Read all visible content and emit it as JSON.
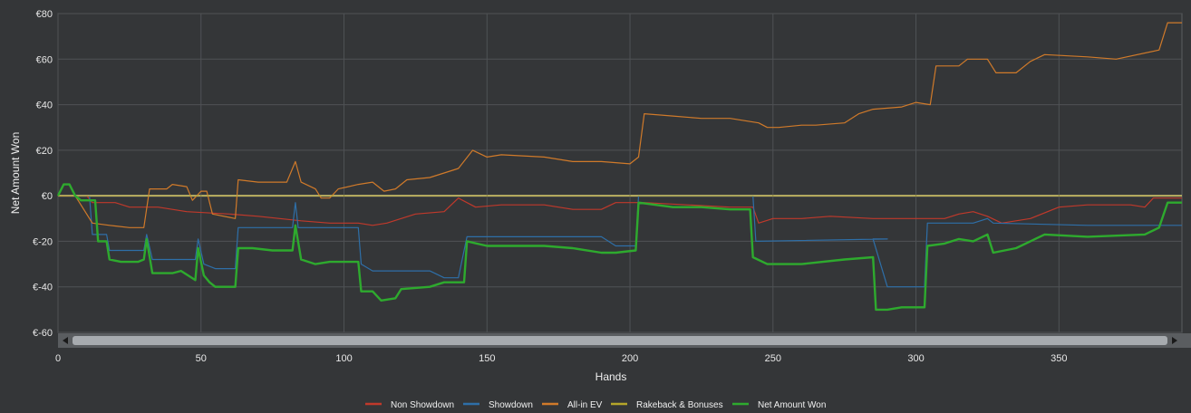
{
  "chart_data": {
    "type": "line",
    "xlabel": "Hands",
    "ylabel": "Net Amount Won",
    "xlim": [
      0,
      393
    ],
    "ylim": [
      -60,
      80
    ],
    "x_ticks": [
      0,
      50,
      100,
      150,
      200,
      250,
      300,
      350
    ],
    "y_ticks": [
      {
        "value": 80,
        "label": "€80"
      },
      {
        "value": 60,
        "label": "€60"
      },
      {
        "value": 40,
        "label": "€40"
      },
      {
        "value": 20,
        "label": "€20"
      },
      {
        "value": 0,
        "label": "€0"
      },
      {
        "value": -20,
        "label": "€-20"
      },
      {
        "value": -40,
        "label": "€-40"
      },
      {
        "value": -60,
        "label": "€-60"
      }
    ],
    "grid": true,
    "legend_position": "bottom-center",
    "series": [
      {
        "name": "Non Showdown",
        "color": "#c0392b",
        "width": 1.2,
        "points": [
          [
            0,
            0
          ],
          [
            3,
            0
          ],
          [
            10,
            0
          ],
          [
            12,
            -3
          ],
          [
            20,
            -3
          ],
          [
            25,
            -5
          ],
          [
            35,
            -5
          ],
          [
            45,
            -7
          ],
          [
            60,
            -8
          ],
          [
            70,
            -9
          ],
          [
            85,
            -11
          ],
          [
            95,
            -12
          ],
          [
            105,
            -12
          ],
          [
            110,
            -13
          ],
          [
            115,
            -12
          ],
          [
            125,
            -8
          ],
          [
            135,
            -7
          ],
          [
            140,
            -1
          ],
          [
            146,
            -5
          ],
          [
            155,
            -4
          ],
          [
            170,
            -4
          ],
          [
            180,
            -6
          ],
          [
            190,
            -6
          ],
          [
            195,
            -3
          ],
          [
            205,
            -3
          ],
          [
            220,
            -4
          ],
          [
            235,
            -5
          ],
          [
            243,
            -5
          ],
          [
            245,
            -12
          ],
          [
            250,
            -10
          ],
          [
            260,
            -10
          ],
          [
            270,
            -9
          ],
          [
            285,
            -10
          ],
          [
            300,
            -10
          ],
          [
            310,
            -10
          ],
          [
            315,
            -8
          ],
          [
            320,
            -7
          ],
          [
            325,
            -9
          ],
          [
            330,
            -12
          ],
          [
            340,
            -10
          ],
          [
            350,
            -5
          ],
          [
            360,
            -4
          ],
          [
            375,
            -4
          ],
          [
            380,
            -5
          ],
          [
            383,
            -1
          ],
          [
            390,
            -1
          ],
          [
            393,
            -1
          ]
        ]
      },
      {
        "name": "Showdown",
        "color": "#2e6fa8",
        "width": 1.2,
        "points": [
          [
            0,
            0
          ],
          [
            2,
            5
          ],
          [
            4,
            5
          ],
          [
            6,
            0
          ],
          [
            11,
            0
          ],
          [
            12,
            -17
          ],
          [
            17,
            -17
          ],
          [
            18,
            -24
          ],
          [
            30,
            -24
          ],
          [
            31,
            -17
          ],
          [
            33,
            -28
          ],
          [
            48,
            -28
          ],
          [
            49,
            -19
          ],
          [
            51,
            -30
          ],
          [
            55,
            -32
          ],
          [
            62,
            -32
          ],
          [
            63,
            -14
          ],
          [
            82,
            -14
          ],
          [
            83,
            -3
          ],
          [
            84,
            -14
          ],
          [
            100,
            -14
          ],
          [
            105,
            -14
          ],
          [
            106,
            -30
          ],
          [
            110,
            -33
          ],
          [
            130,
            -33
          ],
          [
            135,
            -36
          ],
          [
            140,
            -36
          ],
          [
            143,
            -18
          ],
          [
            190,
            -18
          ],
          [
            195,
            -22
          ],
          [
            202,
            -22
          ],
          [
            203,
            0
          ],
          [
            243,
            0
          ],
          [
            244,
            -20
          ],
          [
            290,
            -19
          ],
          [
            285,
            -19
          ],
          [
            290,
            -40
          ],
          [
            303,
            -40
          ],
          [
            304,
            -12
          ],
          [
            320,
            -12
          ],
          [
            325,
            -10
          ],
          [
            327,
            -12
          ],
          [
            360,
            -13
          ],
          [
            393,
            -13
          ]
        ]
      },
      {
        "name": "All-in EV",
        "color": "#d07a2a",
        "width": 1.2,
        "points": [
          [
            0,
            0
          ],
          [
            2,
            5
          ],
          [
            4,
            5
          ],
          [
            6,
            0
          ],
          [
            12,
            -12
          ],
          [
            18,
            -13
          ],
          [
            25,
            -14
          ],
          [
            30,
            -14
          ],
          [
            32,
            3
          ],
          [
            38,
            3
          ],
          [
            40,
            5
          ],
          [
            45,
            4
          ],
          [
            47,
            -2
          ],
          [
            50,
            2
          ],
          [
            52,
            2
          ],
          [
            54,
            -8
          ],
          [
            62,
            -10
          ],
          [
            63,
            7
          ],
          [
            70,
            6
          ],
          [
            80,
            6
          ],
          [
            83,
            15
          ],
          [
            85,
            6
          ],
          [
            90,
            3
          ],
          [
            92,
            -1
          ],
          [
            95,
            -1
          ],
          [
            98,
            3
          ],
          [
            105,
            5
          ],
          [
            110,
            6
          ],
          [
            114,
            2
          ],
          [
            118,
            3
          ],
          [
            122,
            7
          ],
          [
            130,
            8
          ],
          [
            135,
            10
          ],
          [
            140,
            12
          ],
          [
            145,
            20
          ],
          [
            150,
            17
          ],
          [
            155,
            18
          ],
          [
            170,
            17
          ],
          [
            180,
            15
          ],
          [
            190,
            15
          ],
          [
            200,
            14
          ],
          [
            203,
            17
          ],
          [
            205,
            36
          ],
          [
            215,
            35
          ],
          [
            225,
            34
          ],
          [
            235,
            34
          ],
          [
            240,
            33
          ],
          [
            245,
            32
          ],
          [
            248,
            30
          ],
          [
            252,
            30
          ],
          [
            260,
            31
          ],
          [
            265,
            31
          ],
          [
            275,
            32
          ],
          [
            280,
            36
          ],
          [
            285,
            38
          ],
          [
            295,
            39
          ],
          [
            300,
            41
          ],
          [
            305,
            40
          ],
          [
            307,
            57
          ],
          [
            315,
            57
          ],
          [
            318,
            60
          ],
          [
            325,
            60
          ],
          [
            328,
            54
          ],
          [
            335,
            54
          ],
          [
            340,
            59
          ],
          [
            345,
            62
          ],
          [
            360,
            61
          ],
          [
            370,
            60
          ],
          [
            385,
            64
          ],
          [
            388,
            76
          ],
          [
            393,
            76
          ]
        ]
      },
      {
        "name": "Rakeback & Bonuses",
        "color": "#b5a62a",
        "width": 1.2,
        "points": [
          [
            0,
            0
          ],
          [
            393,
            0
          ]
        ]
      },
      {
        "name": "Net Amount Won",
        "color": "#2eaa2e",
        "width": 2.4,
        "points": [
          [
            0,
            0
          ],
          [
            2,
            5
          ],
          [
            4,
            5
          ],
          [
            6,
            0
          ],
          [
            8,
            -2
          ],
          [
            13,
            -2
          ],
          [
            14,
            -20
          ],
          [
            17,
            -20
          ],
          [
            18,
            -28
          ],
          [
            22,
            -29
          ],
          [
            28,
            -29
          ],
          [
            30,
            -28
          ],
          [
            31,
            -19
          ],
          [
            33,
            -34
          ],
          [
            40,
            -34
          ],
          [
            43,
            -33
          ],
          [
            48,
            -37
          ],
          [
            49,
            -23
          ],
          [
            51,
            -35
          ],
          [
            53,
            -38
          ],
          [
            55,
            -40
          ],
          [
            62,
            -40
          ],
          [
            63,
            -23
          ],
          [
            68,
            -23
          ],
          [
            75,
            -24
          ],
          [
            82,
            -24
          ],
          [
            83,
            -13
          ],
          [
            85,
            -28
          ],
          [
            90,
            -30
          ],
          [
            95,
            -29
          ],
          [
            100,
            -29
          ],
          [
            105,
            -29
          ],
          [
            106,
            -42
          ],
          [
            110,
            -42
          ],
          [
            113,
            -46
          ],
          [
            118,
            -45
          ],
          [
            120,
            -41
          ],
          [
            130,
            -40
          ],
          [
            135,
            -38
          ],
          [
            142,
            -38
          ],
          [
            143,
            -20
          ],
          [
            150,
            -22
          ],
          [
            160,
            -22
          ],
          [
            170,
            -22
          ],
          [
            180,
            -23
          ],
          [
            190,
            -25
          ],
          [
            195,
            -25
          ],
          [
            202,
            -24
          ],
          [
            203,
            -3
          ],
          [
            215,
            -5
          ],
          [
            225,
            -5
          ],
          [
            235,
            -6
          ],
          [
            240,
            -6
          ],
          [
            242,
            -6
          ],
          [
            243,
            -27
          ],
          [
            248,
            -30
          ],
          [
            260,
            -30
          ],
          [
            275,
            -28
          ],
          [
            285,
            -27
          ],
          [
            286,
            -50
          ],
          [
            290,
            -50
          ],
          [
            295,
            -49
          ],
          [
            303,
            -49
          ],
          [
            304,
            -22
          ],
          [
            310,
            -21
          ],
          [
            315,
            -19
          ],
          [
            320,
            -20
          ],
          [
            325,
            -17
          ],
          [
            327,
            -25
          ],
          [
            335,
            -23
          ],
          [
            340,
            -20
          ],
          [
            345,
            -17
          ],
          [
            360,
            -18
          ],
          [
            380,
            -17
          ],
          [
            385,
            -14
          ],
          [
            388,
            -3
          ],
          [
            393,
            -3
          ]
        ]
      }
    ]
  }
}
